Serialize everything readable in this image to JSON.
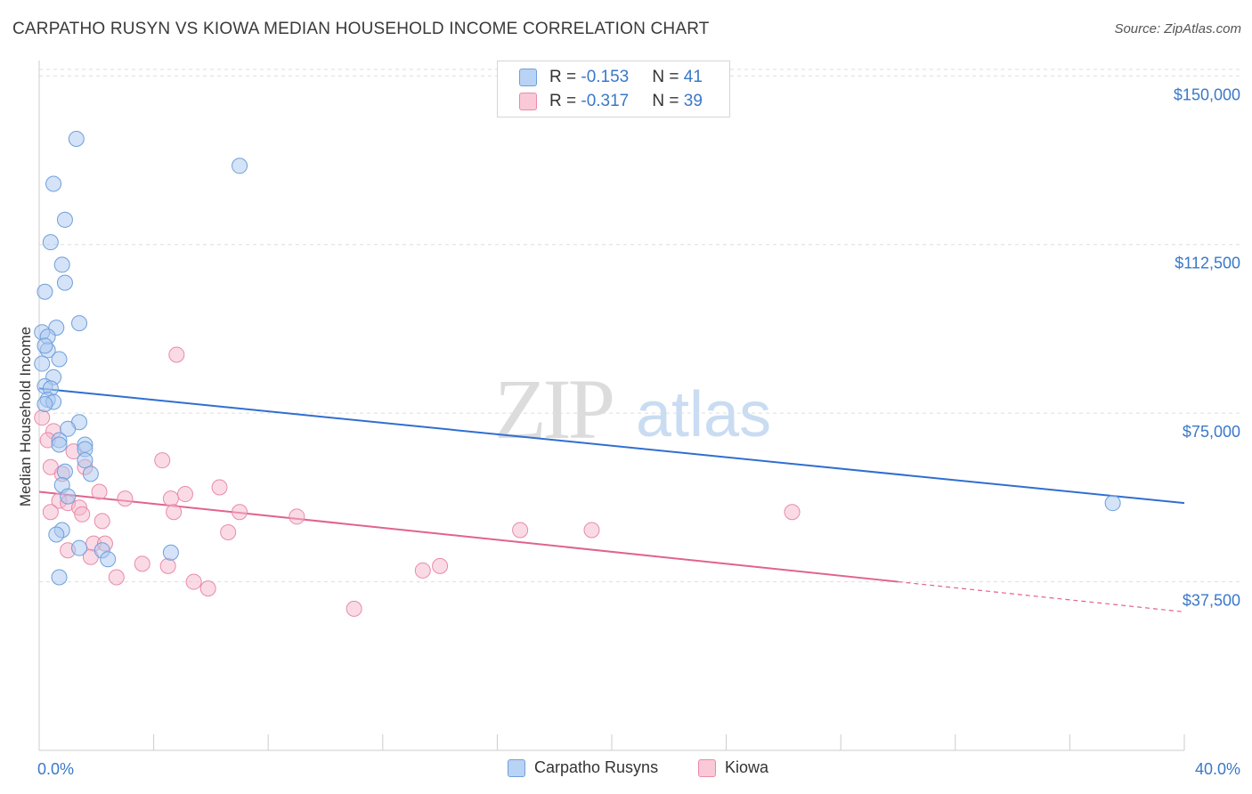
{
  "title": "CARPATHO RUSYN VS KIOWA MEDIAN HOUSEHOLD INCOME CORRELATION CHART",
  "source": "Source: ZipAtlas.com",
  "watermark": {
    "zip": "ZIP",
    "atlas": "atlas"
  },
  "legend": {
    "rows": [
      {
        "r_label": "R = ",
        "r_value": "-0.153",
        "n_label": "N = ",
        "n_value": "41"
      },
      {
        "r_label": "R = ",
        "r_value": "-0.317",
        "n_label": "N = ",
        "n_value": "39"
      }
    ]
  },
  "bottom_legend": {
    "series1": "Carpatho Rusyns",
    "series2": "Kiowa"
  },
  "colors": {
    "blue_fill": "#a9c8f0",
    "blue_stroke": "#6f9fdc",
    "blue_line": "#2f6fcf",
    "pink_fill": "#f6b8cc",
    "pink_stroke": "#e98aa9",
    "pink_line": "#e0638f",
    "axis_label": "#3a78c9"
  },
  "chart_data": {
    "type": "scatter",
    "title": "CARPATHO RUSYN VS KIOWA MEDIAN HOUSEHOLD INCOME CORRELATION CHART",
    "xlabel": "",
    "ylabel": "Median Household Income",
    "xlim": [
      0,
      40
    ],
    "ylim": [
      0,
      155000
    ],
    "x_tick_labels": [
      "0.0%",
      "40.0%"
    ],
    "y_ticks": [
      37500,
      75000,
      112500,
      150000
    ],
    "y_tick_labels": [
      "$37,500",
      "$75,000",
      "$112,500",
      "$150,000"
    ],
    "series": [
      {
        "name": "Carpatho Rusyns",
        "r": -0.153,
        "n": 41,
        "trend": {
          "x0": 0,
          "y0": 80500,
          "x1": 40,
          "y1": 55000
        },
        "points": [
          [
            1.3,
            136000
          ],
          [
            7.0,
            130000
          ],
          [
            0.5,
            126000
          ],
          [
            0.9,
            118000
          ],
          [
            0.4,
            113000
          ],
          [
            0.8,
            108000
          ],
          [
            0.9,
            104000
          ],
          [
            0.2,
            102000
          ],
          [
            1.4,
            95000
          ],
          [
            0.6,
            94000
          ],
          [
            0.1,
            93000
          ],
          [
            0.3,
            92000
          ],
          [
            0.3,
            89000
          ],
          [
            0.2,
            90000
          ],
          [
            0.7,
            87000
          ],
          [
            0.1,
            86000
          ],
          [
            0.5,
            83000
          ],
          [
            0.2,
            81000
          ],
          [
            0.4,
            80500
          ],
          [
            0.3,
            78000
          ],
          [
            0.5,
            77500
          ],
          [
            0.2,
            77000
          ],
          [
            1.4,
            73000
          ],
          [
            1.0,
            71500
          ],
          [
            0.7,
            69000
          ],
          [
            1.6,
            68000
          ],
          [
            1.6,
            67000
          ],
          [
            0.7,
            68000
          ],
          [
            1.6,
            64500
          ],
          [
            0.9,
            62000
          ],
          [
            1.8,
            61500
          ],
          [
            0.8,
            59000
          ],
          [
            1.0,
            56500
          ],
          [
            37.5,
            55000
          ],
          [
            0.8,
            49000
          ],
          [
            0.6,
            48000
          ],
          [
            1.4,
            45000
          ],
          [
            2.2,
            44500
          ],
          [
            4.6,
            44000
          ],
          [
            2.4,
            42500
          ],
          [
            0.7,
            38500
          ]
        ]
      },
      {
        "name": "Kiowa",
        "r": -0.317,
        "n": 39,
        "trend": {
          "x0": 0,
          "y0": 57500,
          "x1": 30,
          "y1": 37500
        },
        "trend_dashed": {
          "x0": 30,
          "y0": 37500,
          "x1": 40,
          "y1": 30800
        },
        "points": [
          [
            4.8,
            88000
          ],
          [
            0.1,
            74000
          ],
          [
            0.5,
            71000
          ],
          [
            0.3,
            69000
          ],
          [
            1.2,
            66500
          ],
          [
            4.3,
            64500
          ],
          [
            1.6,
            63000
          ],
          [
            0.4,
            63000
          ],
          [
            0.8,
            61500
          ],
          [
            6.3,
            58500
          ],
          [
            2.1,
            57500
          ],
          [
            5.1,
            57000
          ],
          [
            3.0,
            56000
          ],
          [
            4.6,
            56000
          ],
          [
            0.7,
            55500
          ],
          [
            1.0,
            55000
          ],
          [
            1.4,
            54000
          ],
          [
            7.0,
            53000
          ],
          [
            4.7,
            53000
          ],
          [
            26.3,
            53000
          ],
          [
            1.5,
            52500
          ],
          [
            9.0,
            52000
          ],
          [
            2.2,
            51000
          ],
          [
            16.8,
            49000
          ],
          [
            19.3,
            49000
          ],
          [
            6.6,
            48500
          ],
          [
            1.9,
            46000
          ],
          [
            1.0,
            44500
          ],
          [
            1.8,
            43000
          ],
          [
            3.6,
            41500
          ],
          [
            4.5,
            41000
          ],
          [
            14.0,
            41000
          ],
          [
            13.4,
            40000
          ],
          [
            2.7,
            38500
          ],
          [
            5.4,
            37500
          ],
          [
            5.9,
            36000
          ],
          [
            11.0,
            31500
          ],
          [
            2.3,
            46000
          ],
          [
            0.4,
            53000
          ]
        ]
      }
    ]
  }
}
